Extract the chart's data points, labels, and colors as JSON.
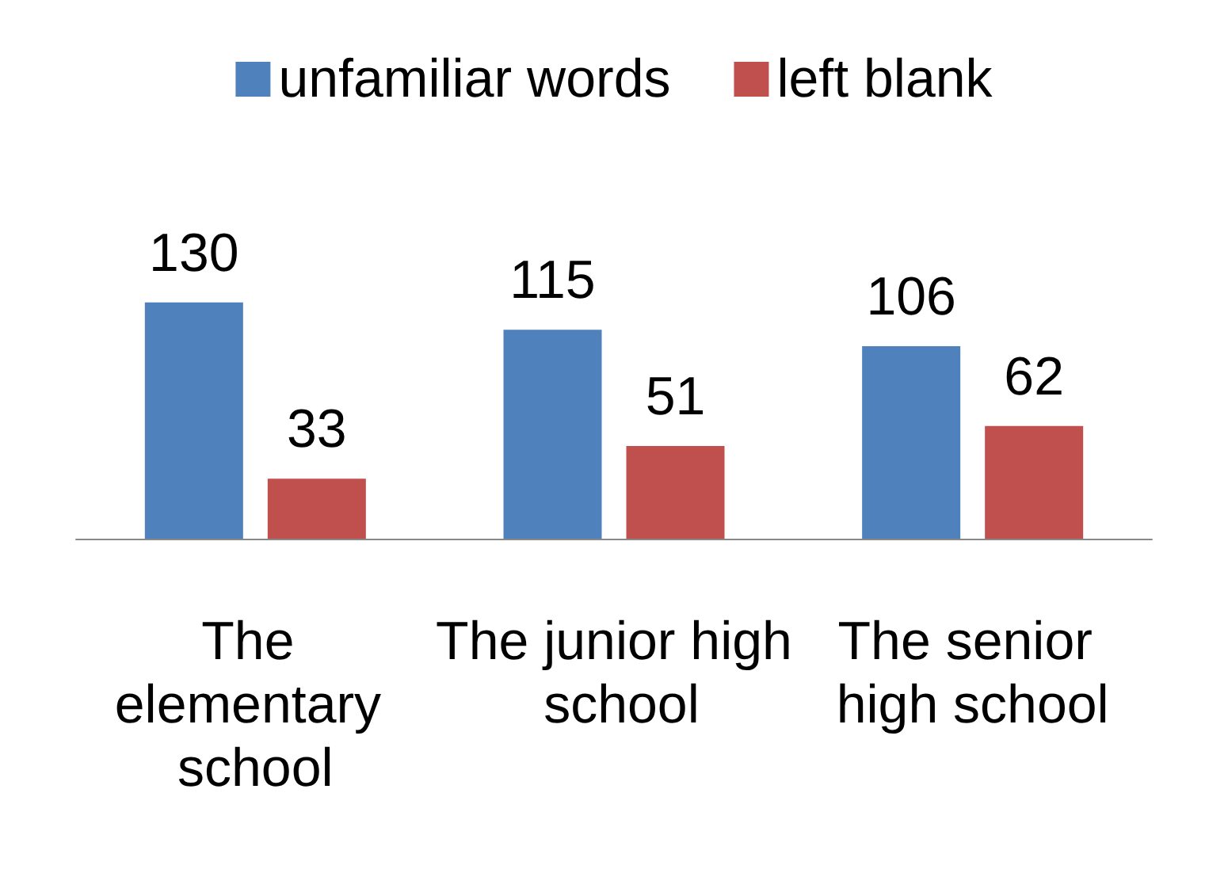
{
  "chart_data": {
    "type": "bar",
    "categories": [
      "The elementary school",
      "The junior high school",
      "The senior high school"
    ],
    "series": [
      {
        "name": "unfamiliar words",
        "color": "#4f81bd",
        "values": [
          130,
          115,
          106
        ]
      },
      {
        "name": "left blank",
        "color": "#c0504d",
        "values": [
          33,
          51,
          62
        ]
      }
    ],
    "data_labels": true,
    "legend": "top",
    "grid": false
  }
}
